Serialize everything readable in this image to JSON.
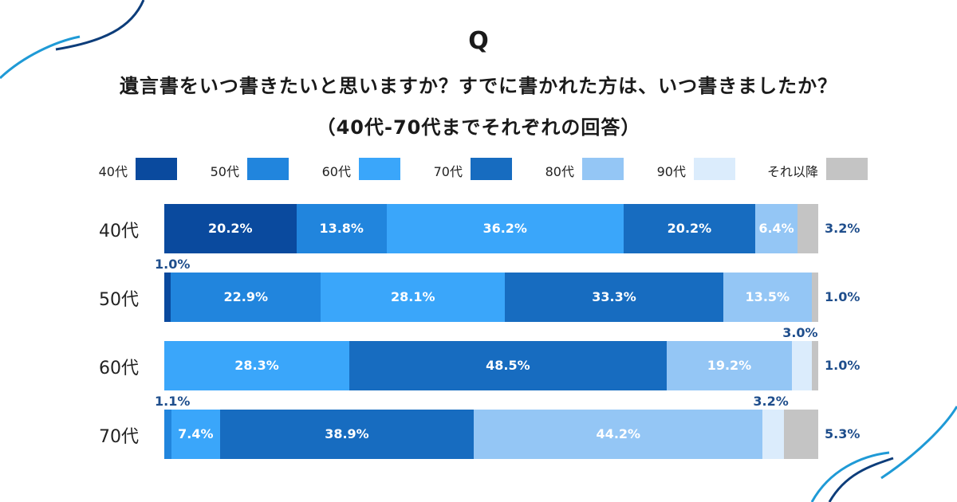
{
  "question_mark": "Q",
  "title_line1": "遺言書をいつ書きたいと思いますか？すでに書かれた方は、いつ書きましたか？",
  "title_line2": "（40代-70代までそれぞれの回答）",
  "colors": {
    "40代": "#0a4a9e",
    "50代": "#2185dd",
    "60代": "#3aa6fa",
    "70代": "#176cc0",
    "80代": "#94c6f5",
    "90代": "#dbecfc",
    "それ以降": "#c4c4c4",
    "label_text": "#1f4e8c",
    "decor_dark": "#0d3d7a",
    "decor_light": "#1f9ad6"
  },
  "chart_data": {
    "type": "bar",
    "orientation": "horizontal",
    "stacked": true,
    "legend_position": "top",
    "legend": [
      "40代",
      "50代",
      "60代",
      "70代",
      "80代",
      "90代",
      "それ以降"
    ],
    "categories": [
      "40代",
      "50代",
      "60代",
      "70代"
    ],
    "unit": "%",
    "series": [
      {
        "name": "40代",
        "values": [
          20.2,
          1.0,
          0,
          0
        ]
      },
      {
        "name": "50代",
        "values": [
          13.8,
          22.9,
          0,
          1.1
        ]
      },
      {
        "name": "60代",
        "values": [
          36.2,
          28.1,
          28.3,
          7.4
        ]
      },
      {
        "name": "70代",
        "values": [
          20.2,
          33.3,
          48.5,
          38.9
        ]
      },
      {
        "name": "80代",
        "values": [
          6.4,
          13.5,
          19.2,
          44.2
        ]
      },
      {
        "name": "90代",
        "values": [
          0,
          0,
          3.0,
          3.2
        ]
      },
      {
        "name": "それ以降",
        "values": [
          3.2,
          1.0,
          1.0,
          5.3
        ]
      }
    ],
    "data_labels": [
      [
        "20.2%",
        "13.8%",
        "36.2%",
        "20.2%",
        "6.4%",
        "",
        "3.2%"
      ],
      [
        "1.0%",
        "22.9%",
        "28.1%",
        "33.3%",
        "13.5%",
        "",
        "1.0%"
      ],
      [
        "",
        "",
        "28.3%",
        "48.5%",
        "19.2%",
        "3.0%",
        "1.0%"
      ],
      [
        "",
        "1.1%",
        "7.4%",
        "38.9%",
        "44.2%",
        "3.2%",
        "5.3%"
      ]
    ],
    "grid": false
  }
}
